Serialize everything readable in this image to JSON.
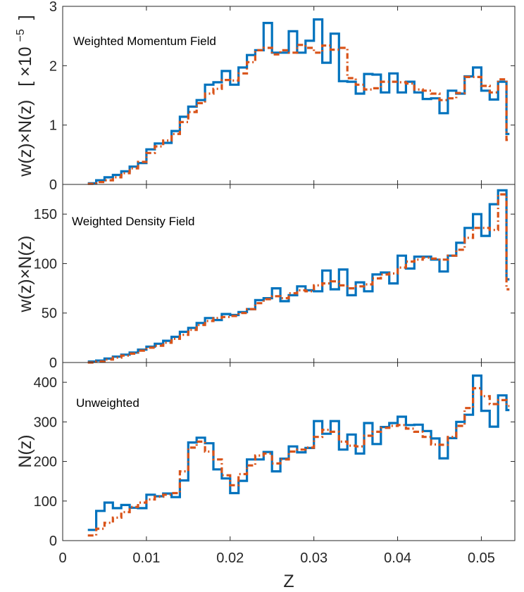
{
  "figure": {
    "xlabel": "Z",
    "x_ticks": [
      "0",
      "0.01",
      "0.02",
      "0.03",
      "0.04",
      "0.05"
    ]
  },
  "colors": {
    "series_solid": "#0072BD",
    "series_dashed": "#D95319"
  },
  "chart_data": [
    {
      "type": "line",
      "style": "step",
      "title": "Weighted Momentum Field",
      "ylabel": "w(z)×N(z)",
      "ylabel_suffix": "[ ×10",
      "ylabel_exp": "−5",
      "ylabel_close": "]",
      "xlim": [
        0,
        0.054
      ],
      "ylim": [
        0,
        3
      ],
      "y_ticks": [
        "0",
        "1",
        "2",
        "3"
      ],
      "x": [
        0.003,
        0.004,
        0.005,
        0.006,
        0.007,
        0.008,
        0.009,
        0.01,
        0.011,
        0.012,
        0.013,
        0.014,
        0.015,
        0.016,
        0.017,
        0.018,
        0.019,
        0.02,
        0.021,
        0.022,
        0.023,
        0.024,
        0.025,
        0.026,
        0.027,
        0.028,
        0.029,
        0.03,
        0.031,
        0.032,
        0.033,
        0.034,
        0.035,
        0.036,
        0.037,
        0.038,
        0.039,
        0.04,
        0.041,
        0.042,
        0.043,
        0.044,
        0.045,
        0.046,
        0.047,
        0.048,
        0.049,
        0.05,
        0.051,
        0.052,
        0.053
      ],
      "series": [
        {
          "values": [
            0.02,
            0.07,
            0.12,
            0.16,
            0.22,
            0.3,
            0.36,
            0.59,
            0.69,
            0.7,
            0.9,
            1.14,
            1.31,
            1.42,
            1.68,
            1.72,
            1.91,
            1.68,
            1.97,
            2.18,
            2.26,
            2.72,
            2.22,
            2.22,
            2.58,
            2.22,
            2.42,
            2.78,
            2.05,
            2.54,
            1.74,
            1.73,
            1.53,
            1.86,
            1.85,
            1.55,
            1.87,
            1.55,
            1.73,
            1.55,
            1.44,
            1.45,
            1.2,
            1.58,
            1.53,
            1.82,
            1.97,
            1.58,
            1.43,
            1.73,
            0.85
          ]
        },
        {
          "values": [
            0.01,
            0.04,
            0.07,
            0.12,
            0.19,
            0.27,
            0.38,
            0.53,
            0.64,
            0.74,
            0.85,
            1.05,
            1.22,
            1.37,
            1.53,
            1.61,
            1.76,
            1.75,
            1.87,
            2.06,
            2.26,
            2.3,
            2.19,
            2.26,
            2.22,
            2.35,
            2.3,
            2.22,
            2.34,
            2.27,
            2.3,
            1.79,
            1.68,
            1.6,
            1.62,
            1.73,
            1.73,
            1.72,
            1.7,
            1.6,
            1.58,
            1.53,
            1.42,
            1.45,
            1.54,
            1.81,
            1.81,
            1.66,
            1.55,
            1.77,
            0.75
          ]
        }
      ]
    },
    {
      "type": "line",
      "style": "step",
      "title": "Weighted Density Field",
      "ylabel": "w(z)×N(z)",
      "xlim": [
        0,
        0.054
      ],
      "ylim": [
        0,
        180
      ],
      "y_ticks": [
        "0",
        "50",
        "100",
        "150"
      ],
      "x": [
        0.003,
        0.004,
        0.005,
        0.006,
        0.007,
        0.008,
        0.009,
        0.01,
        0.011,
        0.012,
        0.013,
        0.014,
        0.015,
        0.016,
        0.017,
        0.018,
        0.019,
        0.02,
        0.021,
        0.022,
        0.023,
        0.024,
        0.025,
        0.026,
        0.027,
        0.028,
        0.029,
        0.03,
        0.031,
        0.032,
        0.033,
        0.034,
        0.035,
        0.036,
        0.037,
        0.038,
        0.039,
        0.04,
        0.041,
        0.042,
        0.043,
        0.044,
        0.045,
        0.046,
        0.047,
        0.048,
        0.049,
        0.05,
        0.051,
        0.052,
        0.053
      ],
      "series": [
        {
          "values": [
            1,
            2,
            4,
            6,
            8,
            10,
            13,
            16,
            19,
            22,
            26,
            31,
            35,
            40,
            45,
            43,
            49,
            48,
            51,
            54,
            63,
            65,
            75,
            62,
            68,
            77,
            73,
            72,
            93,
            74,
            94,
            68,
            81,
            72,
            89,
            91,
            80,
            108,
            95,
            107,
            107,
            104,
            92,
            108,
            121,
            136,
            150,
            128,
            160,
            174,
            84
          ]
        },
        {
          "values": [
            0,
            1,
            3,
            5,
            7,
            9,
            12,
            15,
            17,
            20,
            24,
            28,
            33,
            38,
            42,
            45,
            46,
            47,
            50,
            54,
            60,
            64,
            67,
            65,
            70,
            73,
            72,
            78,
            80,
            82,
            78,
            75,
            77,
            79,
            85,
            89,
            90,
            96,
            102,
            104,
            106,
            105,
            104,
            108,
            114,
            126,
            136,
            136,
            134,
            170,
            74
          ]
        }
      ]
    },
    {
      "type": "line",
      "style": "step",
      "title": "Unweighted",
      "ylabel": "N(z)",
      "xlim": [
        0,
        0.054
      ],
      "ylim": [
        0,
        450
      ],
      "y_ticks": [
        "0",
        "100",
        "200",
        "300",
        "400"
      ],
      "x": [
        0.003,
        0.004,
        0.005,
        0.006,
        0.007,
        0.008,
        0.009,
        0.01,
        0.011,
        0.012,
        0.013,
        0.014,
        0.015,
        0.016,
        0.017,
        0.018,
        0.019,
        0.02,
        0.021,
        0.022,
        0.023,
        0.024,
        0.025,
        0.026,
        0.027,
        0.028,
        0.029,
        0.03,
        0.031,
        0.032,
        0.033,
        0.034,
        0.035,
        0.036,
        0.037,
        0.038,
        0.039,
        0.04,
        0.041,
        0.042,
        0.043,
        0.044,
        0.045,
        0.046,
        0.047,
        0.048,
        0.049,
        0.05,
        0.051,
        0.052,
        0.053
      ],
      "series": [
        {
          "values": [
            27,
            75,
            96,
            82,
            90,
            83,
            82,
            116,
            112,
            119,
            110,
            152,
            248,
            260,
            246,
            180,
            157,
            120,
            151,
            205,
            205,
            224,
            175,
            207,
            238,
            223,
            234,
            302,
            270,
            302,
            230,
            268,
            220,
            297,
            244,
            287,
            297,
            313,
            292,
            293,
            277,
            258,
            208,
            259,
            300,
            318,
            417,
            328,
            288,
            367,
            330
          ]
        },
        {
          "values": [
            13,
            30,
            45,
            58,
            72,
            85,
            96,
            104,
            111,
            116,
            120,
            175,
            235,
            250,
            225,
            205,
            165,
            140,
            168,
            190,
            215,
            220,
            195,
            205,
            225,
            230,
            235,
            262,
            280,
            275,
            250,
            240,
            238,
            265,
            275,
            285,
            290,
            292,
            283,
            275,
            262,
            243,
            242,
            262,
            290,
            335,
            385,
            365,
            345,
            355,
            340
          ]
        }
      ]
    }
  ]
}
